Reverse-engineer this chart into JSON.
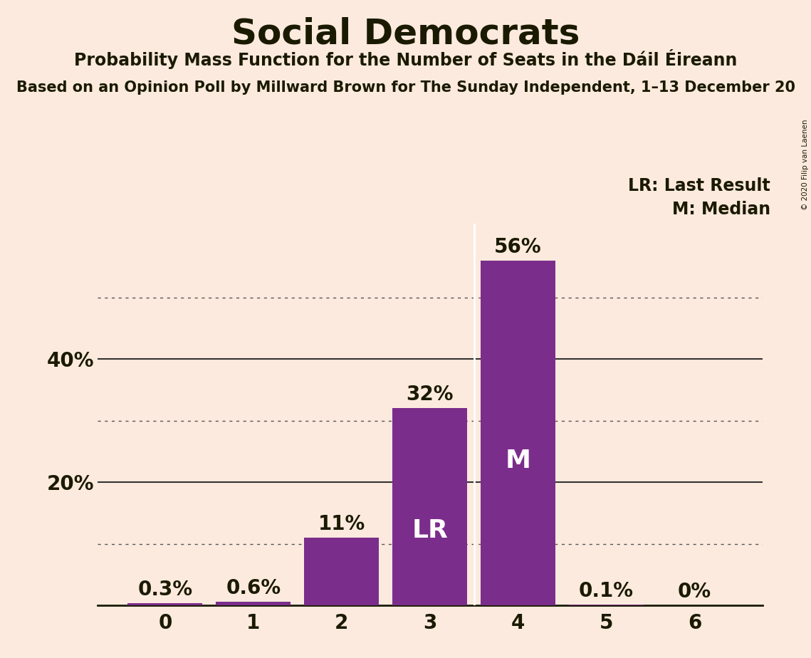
{
  "title": "Social Democrats",
  "subtitle1": "Probability Mass Function for the Number of Seats in the Dáil Éireann",
  "subtitle2": "Based on an Opinion Poll by Millward Brown for The Sunday Independent, 1–13 December 20",
  "copyright": "© 2020 Filip van Laenen",
  "categories": [
    0,
    1,
    2,
    3,
    4,
    5,
    6
  ],
  "values": [
    0.3,
    0.6,
    11.0,
    32.0,
    56.0,
    0.1,
    0.0
  ],
  "bar_color": "#7B2D8B",
  "background_color": "#FDEADE",
  "text_color": "#1a1a00",
  "label_color_white": "#ffffff",
  "dotted_gridlines": [
    10,
    30,
    50
  ],
  "solid_gridlines": [
    20,
    40
  ],
  "ylim": [
    0,
    62
  ],
  "lr_bar": 3,
  "m_bar": 4,
  "legend_lr": "LR: Last Result",
  "legend_m": "M: Median",
  "percent_labels": [
    "0.3%",
    "0.6%",
    "11%",
    "32%",
    "56%",
    "0.1%",
    "0%"
  ],
  "inside_label_threshold": 10
}
